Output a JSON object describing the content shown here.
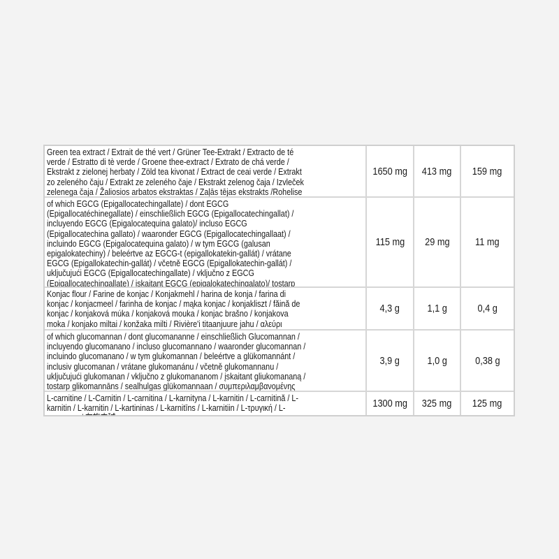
{
  "rows": [
    {
      "label": "Green tea extract / Extrait de thé vert / Grüner Tee-Extrakt / Extracto de té verde / Estratto di tè verde / Groene thee-extract / Extrato de chá verde / Ekstrakt z zielonej herbaty / Zöld tea kivonat / Extract de ceai verde / Extrakt zo zeleného čaju / Extrakt ze zeleného čaje / Ekstrakt zelenog čaja / Izvleček zelenega čaja / Žaliosios arbatos ekstraktas / Zaļās tējas ekstrakts /Rohelise tee ekstrakt / Εκχύλισμα πράσινου τσαγιού / Екстракт от зелен чай / Yeşil çay özü / 绿茶提取物",
      "v1": "1650 mg",
      "v2": "413 mg",
      "v3": "159 mg"
    },
    {
      "label": "of which EGCG (Epigallocatechingallate) / dont EGCG (Epigallocatéchinegallate) / einschließlich EGCG (Epigallocatechingallat) / incluyendo EGCG (Epigalocatequina galato)/ incluso EGCG (Epigallocatechina gallato) / waaronder EGCG (Epigallocatechingallaat) / incluindo EGCG (Epigalocatequina galato) / w tym EGCG (galusan epigalokatechiny) / beleértve az EGCG-t (epigallokatekin-gallát) / vrátane EGCG (Epigallokatechin-gallát) / včetně EGCG (Epigallokatechin-gallát) / uključujući EGCG (Epigallocatechingallate) / vključno z EGCG (Epigallocatechingallate) / įskaitant EGCG (epigalokatechingalato)/ tostarp EGCG (epigallokatehīna galāts) / sealhulgas EGCG (epigallokatehhiingallaat) / συμπεριλαμβανομένης της EGCG (γαλλικήεπιγαλλοκατεχίνη) / включително EGCG (епігаллокатехінгаллат) / EGCG (Epigallocatechingallate) dahil / 其中包括EGCG 表没食子儿茶素没食子酸酯)",
      "v1": "115 mg",
      "v2": "29 mg",
      "v3": "11 mg"
    },
    {
      "label": "Konjac flour / Farine de konjac / Konjakmehl / harina de konja / farina di konjac / konjacmeel / farinha de konjac / mąka konjac / konjakliszt / făină de konjac / konjaková múka / konjaková mouka  / konjac brašno  / konjakova moka / konjako miltai /  konžaka milti / Rivière'i titaanjuure jahu / αλεύρι Konjac / брашно от конджак / Konjac unu / 魔芋粉",
      "v1": "4,3 g",
      "v2": "1,1 g",
      "v3": "0,4 g"
    },
    {
      "label": "of which glucomannan / dont glucomananne / einschließlich Glucomannan / incluyendo glucomanano / incluso glucomannano / waaronder glucomannan / incluindo glucomanano / w tym glukomannan / beleértve a glükomannánt / inclusiv glucomanan / vrátane glukomanánu / včetně glukomannanu / uključujući glukomanan / vključno z glukomananom / įskaitant gliukomananą / tostarp glikomannāns / sealhulgas glükomannaan / συμπεριλαμβανομένης της γλυκομαννάνης  / включително глюкоманан / bunlardan glukomanan / 其中包括葡甘聚糖",
      "v1": "3,9 g",
      "v2": "1,0 g",
      "v3": "0,38 g"
    },
    {
      "label": "L-carnitine / L-Carnitin / L-carnitina / L-karnityna / L-karnitin / L-carnitină / L-karnitin / L-karnitin / L-kartininas / L-karnitīns / L-karnitiin /  L-τρυγική / L-карнитин / 左旋肉碱",
      "v1": "1300 mg",
      "v2": "325 mg",
      "v3": "125 mg"
    }
  ]
}
